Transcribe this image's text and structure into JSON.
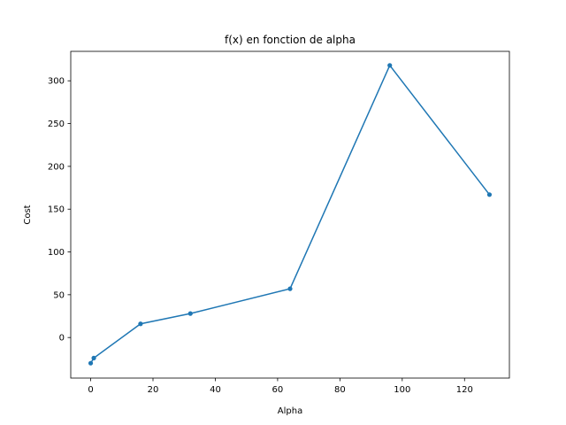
{
  "chart_data": {
    "type": "line",
    "title": "f(x) en fonction de alpha",
    "xlabel": "Alpha",
    "ylabel": "Cost",
    "xlim": [
      -6.4,
      134.4
    ],
    "ylim": [
      -47.4,
      334.4
    ],
    "xticks": [
      0,
      20,
      40,
      60,
      80,
      100,
      120
    ],
    "yticks": [
      0,
      50,
      100,
      150,
      200,
      250,
      300
    ],
    "grid": false,
    "series": [
      {
        "color": "#1f77b4",
        "marker": "circle",
        "x": [
          0,
          1,
          16,
          32,
          64,
          96,
          128
        ],
        "y": [
          -30,
          -24,
          16,
          28,
          57,
          318,
          167
        ]
      }
    ]
  }
}
